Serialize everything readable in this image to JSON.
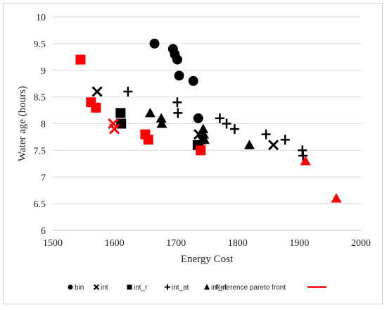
{
  "chart_data": {
    "type": "scatter",
    "title": "",
    "xlabel": "Energy Cost",
    "ylabel": "Water age (hours)",
    "xlim": [
      1500,
      2000
    ],
    "ylim": [
      6,
      10
    ],
    "x_ticks": [
      1500,
      1600,
      1700,
      1800,
      1900,
      2000
    ],
    "y_ticks": [
      6,
      6.5,
      7,
      7.5,
      8,
      8.5,
      9,
      9.5,
      10
    ],
    "grid": "horizontal",
    "legend_position": "bottom",
    "series": [
      {
        "name": "bin",
        "marker": "circle",
        "color": "#000000",
        "points": [
          [
            1665,
            9.5
          ],
          [
            1695,
            9.4
          ],
          [
            1698,
            9.3
          ],
          [
            1702,
            9.2
          ],
          [
            1705,
            8.9
          ],
          [
            1728,
            8.8
          ],
          [
            1736,
            8.1
          ],
          [
            1737,
            7.6
          ]
        ]
      },
      {
        "name": "int",
        "marker": "x",
        "color": "#000000",
        "points": [
          [
            1572,
            8.6
          ],
          [
            1737,
            7.8
          ],
          [
            1741,
            7.7
          ],
          [
            1858,
            7.6
          ]
        ]
      },
      {
        "name": "int_r",
        "marker": "square",
        "color": "#000000",
        "points": [
          [
            1610,
            8.2
          ],
          [
            1611,
            8.0
          ],
          [
            1735,
            7.6
          ]
        ]
      },
      {
        "name": "int_at",
        "marker": "plus",
        "color": "#000000",
        "points": [
          [
            1622,
            8.6
          ],
          [
            1702,
            8.4
          ],
          [
            1703,
            8.2
          ],
          [
            1771,
            8.1
          ],
          [
            1782,
            8.0
          ],
          [
            1795,
            7.9
          ],
          [
            1846,
            7.8
          ],
          [
            1877,
            7.7
          ],
          [
            1905,
            7.5
          ],
          [
            1906,
            7.4
          ]
        ]
      },
      {
        "name": "int_rt",
        "marker": "triangle",
        "color": "#000000",
        "points": [
          [
            1658,
            8.2
          ],
          [
            1676,
            8.1
          ],
          [
            1677,
            8.0
          ],
          [
            1744,
            7.9
          ],
          [
            1745,
            7.8
          ],
          [
            1746,
            7.7
          ],
          [
            1819,
            7.6
          ]
        ]
      },
      {
        "name": "Reference pareto front",
        "marker": "mixed",
        "color": "#ff0000",
        "points": [
          {
            "x": 1545,
            "y": 9.2,
            "marker": "square"
          },
          {
            "x": 1562,
            "y": 8.4,
            "marker": "square"
          },
          {
            "x": 1570,
            "y": 8.3,
            "marker": "square"
          },
          {
            "x": 1598,
            "y": 8.0,
            "marker": "x"
          },
          {
            "x": 1600,
            "y": 7.9,
            "marker": "x"
          },
          {
            "x": 1650,
            "y": 7.8,
            "marker": "square"
          },
          {
            "x": 1655,
            "y": 7.7,
            "marker": "square"
          },
          {
            "x": 1740,
            "y": 7.5,
            "marker": "square"
          },
          {
            "x": 1910,
            "y": 7.3,
            "marker": "triangle"
          },
          {
            "x": 1960,
            "y": 6.6,
            "marker": "triangle"
          }
        ]
      }
    ]
  },
  "legend": {
    "items": [
      {
        "label": "bin",
        "marker": "circle"
      },
      {
        "label": "int",
        "marker": "x"
      },
      {
        "label": "int_r",
        "marker": "square"
      },
      {
        "label": "int_at",
        "marker": "plus"
      },
      {
        "label": "int_rt",
        "marker": "triangle"
      }
    ],
    "reference_label": "Reference pareto front",
    "reference_color": "#ff0000"
  }
}
